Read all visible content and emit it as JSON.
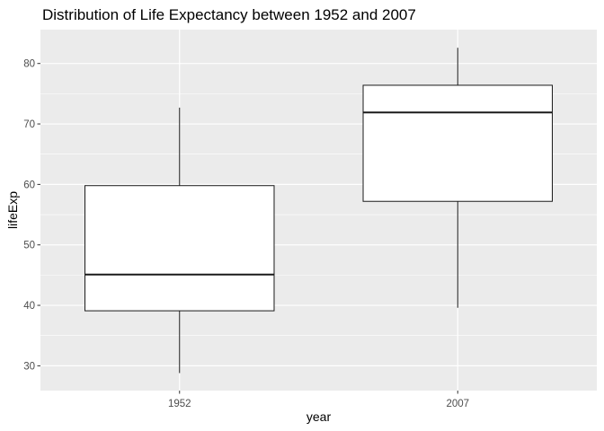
{
  "chart_data": {
    "type": "boxplot",
    "title": "Distribution of Life Expectancy between 1952 and 2007",
    "xlabel": "year",
    "ylabel": "lifeExp",
    "ylim": [
      25.9,
      85.6
    ],
    "y_major_ticks": [
      30,
      40,
      50,
      60,
      70,
      80
    ],
    "y_minor_ticks": [
      35,
      45,
      55,
      65,
      75
    ],
    "grid": true,
    "categories": [
      "1952",
      "2007"
    ],
    "boxes": [
      {
        "category": "1952",
        "min": 28.8,
        "q1": 39.1,
        "median": 45.1,
        "q3": 59.8,
        "max": 72.7
      },
      {
        "category": "2007",
        "min": 39.6,
        "q1": 57.2,
        "median": 71.9,
        "q3": 76.4,
        "max": 82.6
      }
    ],
    "colors": {
      "panel": "#ebebeb",
      "grid": "#ffffff",
      "box_fill": "#ffffff",
      "box_stroke": "#1a1a1a"
    }
  }
}
